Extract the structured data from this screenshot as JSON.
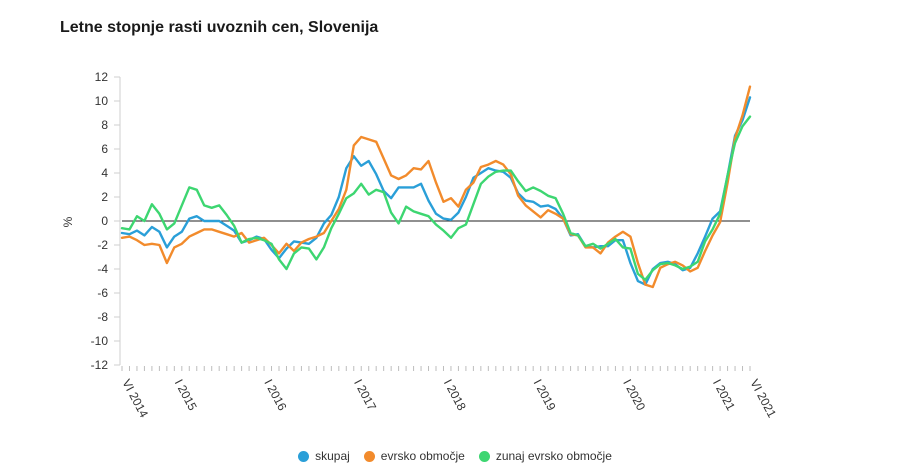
{
  "chart_data": {
    "type": "line",
    "title": "Letne stopnje rasti uvoznih cen, Slovenija",
    "ylabel": "%",
    "xlabel": "",
    "ylim": [
      -12,
      12
    ],
    "yticks": [
      12,
      10,
      8,
      6,
      4,
      2,
      0,
      -2,
      -4,
      -6,
      -8,
      -10,
      -12
    ],
    "x_start": "VI 2014",
    "x_end": "VI 2021",
    "x_tick_labels": [
      {
        "label": "VI 2014",
        "index": 0
      },
      {
        "label": "I 2015",
        "index": 7
      },
      {
        "label": "I 2016",
        "index": 19
      },
      {
        "label": "I 2017",
        "index": 31
      },
      {
        "label": "I 2018",
        "index": 43
      },
      {
        "label": "I 2019",
        "index": 55
      },
      {
        "label": "I 2020",
        "index": 67
      },
      {
        "label": "I 2021",
        "index": 79
      },
      {
        "label": "VI 2021",
        "index": 84
      }
    ],
    "series": [
      {
        "name": "skupaj",
        "color": "#2a9fd8",
        "values": [
          -1.0,
          -1.1,
          -0.8,
          -1.2,
          -0.5,
          -0.9,
          -2.2,
          -1.3,
          -0.9,
          0.2,
          0.4,
          0.0,
          0.0,
          0.0,
          -0.4,
          -0.8,
          -1.8,
          -1.6,
          -1.3,
          -1.5,
          -2.4,
          -3.1,
          -2.3,
          -1.7,
          -1.8,
          -1.9,
          -1.4,
          -0.2,
          0.5,
          2.0,
          4.4,
          5.4,
          4.6,
          5.0,
          3.9,
          2.5,
          1.9,
          2.8,
          2.8,
          2.8,
          3.1,
          1.7,
          0.6,
          0.2,
          0.1,
          0.7,
          2.0,
          3.6,
          4.0,
          4.4,
          4.2,
          4.1,
          3.6,
          2.3,
          1.7,
          1.6,
          1.2,
          1.3,
          1.0,
          0.2,
          -1.2,
          -1.1,
          -2.1,
          -2.2,
          -2.1,
          -2.1,
          -1.6,
          -1.6,
          -3.5,
          -5.0,
          -5.3,
          -4.0,
          -3.5,
          -3.4,
          -3.6,
          -4.1,
          -3.9,
          -2.7,
          -1.3,
          0.2,
          0.8,
          3.8,
          7.1,
          8.4,
          10.3
        ]
      },
      {
        "name": "evrsko območje",
        "color": "#f28b2c",
        "values": [
          -1.4,
          -1.3,
          -1.6,
          -2.0,
          -1.9,
          -2.0,
          -3.5,
          -2.2,
          -1.9,
          -1.3,
          -1.0,
          -0.7,
          -0.7,
          -0.9,
          -1.1,
          -1.3,
          -1.0,
          -1.8,
          -1.6,
          -1.4,
          -2.0,
          -2.7,
          -1.9,
          -2.5,
          -1.8,
          -1.5,
          -1.3,
          -1.0,
          0.0,
          1.0,
          2.6,
          6.3,
          7.0,
          6.8,
          6.6,
          5.2,
          3.8,
          3.5,
          3.8,
          4.4,
          4.3,
          5.0,
          3.2,
          1.6,
          1.9,
          1.2,
          2.6,
          3.2,
          4.5,
          4.7,
          5.0,
          4.7,
          3.9,
          2.1,
          1.3,
          0.8,
          0.3,
          0.9,
          0.6,
          0.2,
          -1.1,
          -1.2,
          -2.2,
          -2.2,
          -2.7,
          -1.8,
          -1.3,
          -0.9,
          -1.3,
          -3.5,
          -5.3,
          -5.5,
          -3.9,
          -3.6,
          -3.4,
          -3.7,
          -4.2,
          -3.9,
          -2.5,
          -1.2,
          -0.1,
          3.2,
          6.9,
          8.8,
          11.2
        ]
      },
      {
        "name": "zunaj evrsko območje",
        "color": "#3dd671",
        "values": [
          -0.6,
          -0.7,
          0.4,
          0.0,
          1.4,
          0.6,
          -0.7,
          -0.2,
          1.3,
          2.8,
          2.6,
          1.3,
          1.1,
          1.3,
          0.5,
          -0.4,
          -1.8,
          -1.5,
          -1.4,
          -1.6,
          -1.9,
          -3.2,
          -4.0,
          -2.7,
          -2.2,
          -2.3,
          -3.2,
          -2.2,
          -0.6,
          0.6,
          1.9,
          2.3,
          3.1,
          2.2,
          2.6,
          2.4,
          0.7,
          -0.2,
          1.2,
          0.8,
          0.6,
          0.4,
          -0.3,
          -0.8,
          -1.4,
          -0.6,
          -0.3,
          1.4,
          3.1,
          3.7,
          4.1,
          4.2,
          4.2,
          3.3,
          2.5,
          2.8,
          2.5,
          2.1,
          1.9,
          0.6,
          -1.0,
          -1.2,
          -2.1,
          -1.9,
          -2.3,
          -1.9,
          -1.5,
          -2.2,
          -2.3,
          -4.4,
          -4.9,
          -4.1,
          -3.6,
          -3.5,
          -3.7,
          -4.0,
          -3.8,
          -3.4,
          -1.7,
          -0.7,
          0.6,
          3.8,
          6.5,
          7.9,
          8.7
        ]
      }
    ]
  }
}
